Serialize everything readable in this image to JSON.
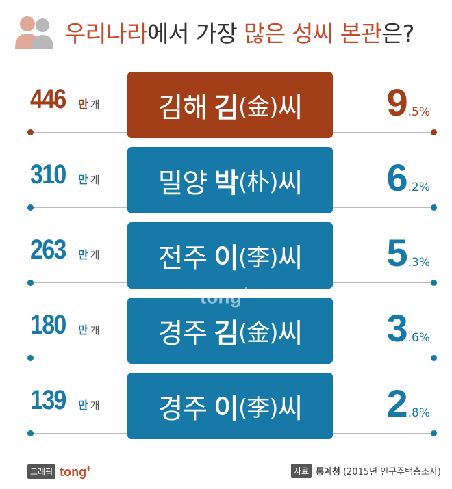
{
  "title": {
    "lead": "우리나라",
    "middle": "에서 가장 ",
    "highlight": "많은 성씨 본관",
    "tail": "은?"
  },
  "chart_data": {
    "type": "table",
    "title": "우리나라에서 가장 많은 성씨 본관은?",
    "rows": [
      {
        "rank": 1,
        "count": "446",
        "count_unit1": "만",
        "count_unit2": "개",
        "region": "김해",
        "surname": "김",
        "hanja": "(金)",
        "ssi": "씨",
        "pct_int": "9",
        "pct_rest": ".5%",
        "value_count": 446,
        "value_pct": 9.5,
        "color": "#a23e18"
      },
      {
        "rank": 2,
        "count": "310",
        "count_unit1": "만",
        "count_unit2": "개",
        "region": "밀양",
        "surname": "박",
        "hanja": "(朴)",
        "ssi": "씨",
        "pct_int": "6",
        "pct_rest": ".2%",
        "value_count": 310,
        "value_pct": 6.2,
        "color": "#1679a7"
      },
      {
        "rank": 3,
        "count": "263",
        "count_unit1": "만",
        "count_unit2": "개",
        "region": "전주",
        "surname": "이",
        "hanja": "(李)",
        "ssi": "씨",
        "pct_int": "5",
        "pct_rest": ".3%",
        "value_count": 263,
        "value_pct": 5.3,
        "color": "#1679a7"
      },
      {
        "rank": 4,
        "count": "180",
        "count_unit1": "만",
        "count_unit2": "개",
        "region": "경주",
        "surname": "김",
        "hanja": "(金)",
        "ssi": "씨",
        "pct_int": "3",
        "pct_rest": ".6%",
        "value_count": 180,
        "value_pct": 3.6,
        "color": "#1679a7"
      },
      {
        "rank": 5,
        "count": "139",
        "count_unit1": "만",
        "count_unit2": "개",
        "region": "경주",
        "surname": "이",
        "hanja": "(李)",
        "ssi": "씨",
        "pct_int": "2",
        "pct_rest": ".8%",
        "value_count": 139,
        "value_pct": 2.8,
        "color": "#1679a7"
      }
    ],
    "count_color_top": "#a23e18",
    "count_color": "#1679a7"
  },
  "watermark": {
    "text": "tong",
    "plus": "+"
  },
  "footer": {
    "graphic_tag": "그래픽",
    "brand": "tong",
    "brand_plus": "+",
    "source_tag": "자료",
    "source_org": "통계청",
    "source_detail": "(2015년 인구주택총조사)"
  },
  "icon": "people-icon"
}
